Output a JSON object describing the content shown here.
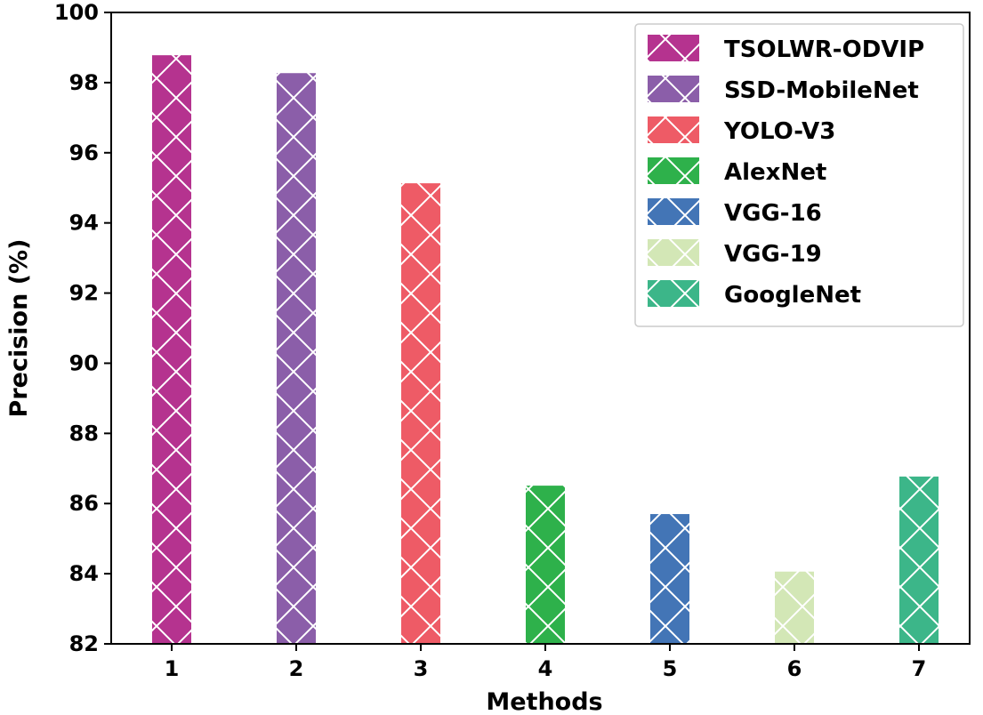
{
  "chart_data": {
    "type": "bar",
    "title": "",
    "xlabel": "Methods",
    "ylabel": "Precision (%)",
    "categories": [
      "1",
      "2",
      "3",
      "4",
      "5",
      "6",
      "7"
    ],
    "series": [
      {
        "name": "TSOLWR-ODVIP",
        "category": "1",
        "value": 98.78,
        "color": "#b5338f"
      },
      {
        "name": "SSD-MobileNet",
        "category": "2",
        "value": 98.27,
        "color": "#8b5ea9"
      },
      {
        "name": "YOLO-V3",
        "category": "3",
        "value": 95.13,
        "color": "#ee5b66"
      },
      {
        "name": "AlexNet",
        "category": "4",
        "value": 86.51,
        "color": "#2eb14b"
      },
      {
        "name": "VGG-16",
        "category": "5",
        "value": 85.7,
        "color": "#4375b6"
      },
      {
        "name": "VGG-19",
        "category": "6",
        "value": 84.06,
        "color": "#d3e7b6"
      },
      {
        "name": "GoogleNet",
        "category": "7",
        "value": 86.77,
        "color": "#3cb689"
      }
    ],
    "ylim": [
      82,
      100
    ],
    "yticks": [
      82,
      84,
      86,
      88,
      90,
      92,
      94,
      96,
      98,
      100
    ],
    "grid": false,
    "legend_position": "top-right",
    "hatch": "x"
  }
}
